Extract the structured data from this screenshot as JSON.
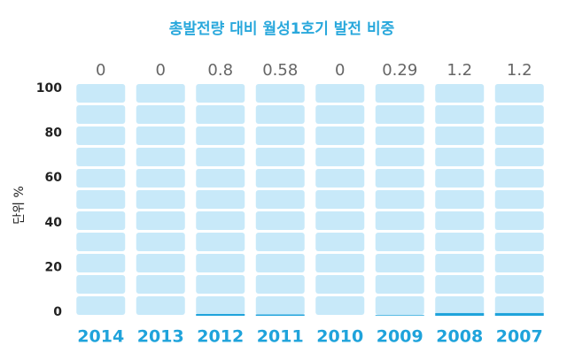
{
  "chart_data": {
    "type": "bar",
    "title": "총발전량 대비 월성1호기 발전 비중",
    "y_label": "단위 %",
    "categories": [
      "2014",
      "2013",
      "2012",
      "2011",
      "2010",
      "2009",
      "2008",
      "2007"
    ],
    "values": [
      0,
      0,
      0.8,
      0.58,
      0,
      0.29,
      1.2,
      1.2
    ],
    "color": "#1fa3db",
    "ylim": [
      0,
      100
    ],
    "yticks": [
      0,
      20,
      40,
      60,
      80,
      100
    ]
  }
}
